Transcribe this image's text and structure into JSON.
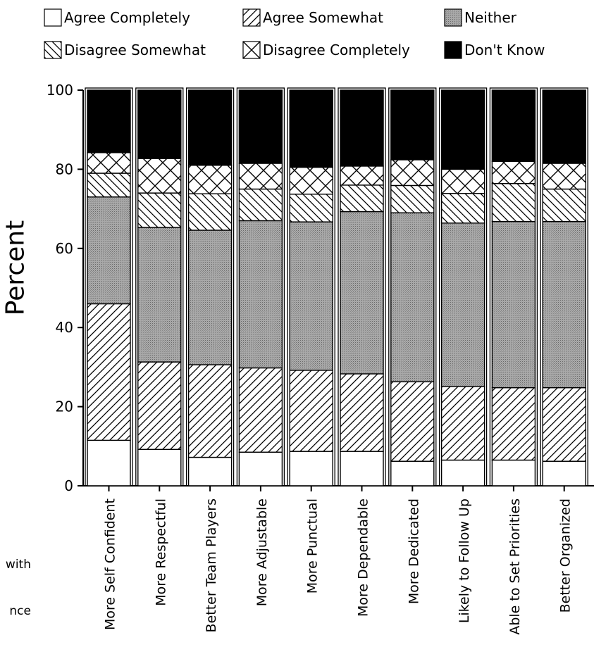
{
  "chart_data": {
    "type": "bar",
    "stacked": true,
    "percent_stacked": true,
    "title": "",
    "xlabel": "",
    "ylabel": "Percent",
    "ylim": [
      0,
      100
    ],
    "yticks": [
      0,
      20,
      40,
      60,
      80,
      100
    ],
    "grid": false,
    "legend_position": "top",
    "categories": [
      "More Self Confident",
      "More Respectful",
      "Better Team Players",
      "More Adjustable",
      "More Punctual",
      "More Dependable",
      "More Dedicated",
      "Likely to Follow Up",
      "Able to Set Priorities",
      "Better Organized"
    ],
    "series": [
      {
        "name": "Agree Completely",
        "pattern": "blank",
        "color": "#ffffff",
        "values": [
          11.5,
          9.2,
          7.2,
          8.5,
          8.7,
          8.7,
          6.2,
          6.5,
          6.5,
          6.2
        ]
      },
      {
        "name": "Agree Somewhat",
        "pattern": "diagonal",
        "color": "#ffffff",
        "values": [
          34.5,
          22.1,
          23.4,
          21.3,
          20.5,
          19.6,
          20.1,
          18.6,
          18.3,
          18.6
        ]
      },
      {
        "name": "Neither",
        "pattern": "stipple",
        "color": "#9a9a9a",
        "values": [
          27.0,
          34.0,
          34.0,
          37.2,
          37.5,
          41.0,
          42.7,
          41.3,
          42.0,
          42.0
        ]
      },
      {
        "name": "Disagree Somewhat",
        "pattern": "backdiagonal",
        "color": "#ffffff",
        "values": [
          6.0,
          8.7,
          9.2,
          8.0,
          7.0,
          6.7,
          6.9,
          7.5,
          9.6,
          8.2
        ]
      },
      {
        "name": "Disagree Completely",
        "pattern": "crosshatch",
        "color": "#ffffff",
        "values": [
          5.2,
          8.7,
          7.2,
          6.5,
          6.8,
          4.8,
          6.5,
          6.1,
          5.6,
          6.5
        ]
      },
      {
        "name": "Don't Know",
        "pattern": "solid",
        "color": "#000000",
        "values": [
          15.8,
          17.3,
          19.0,
          18.5,
          19.5,
          19.2,
          17.6,
          20.0,
          18.0,
          18.5
        ]
      }
    ],
    "clipped_left_text": [
      "with",
      "nce"
    ]
  }
}
